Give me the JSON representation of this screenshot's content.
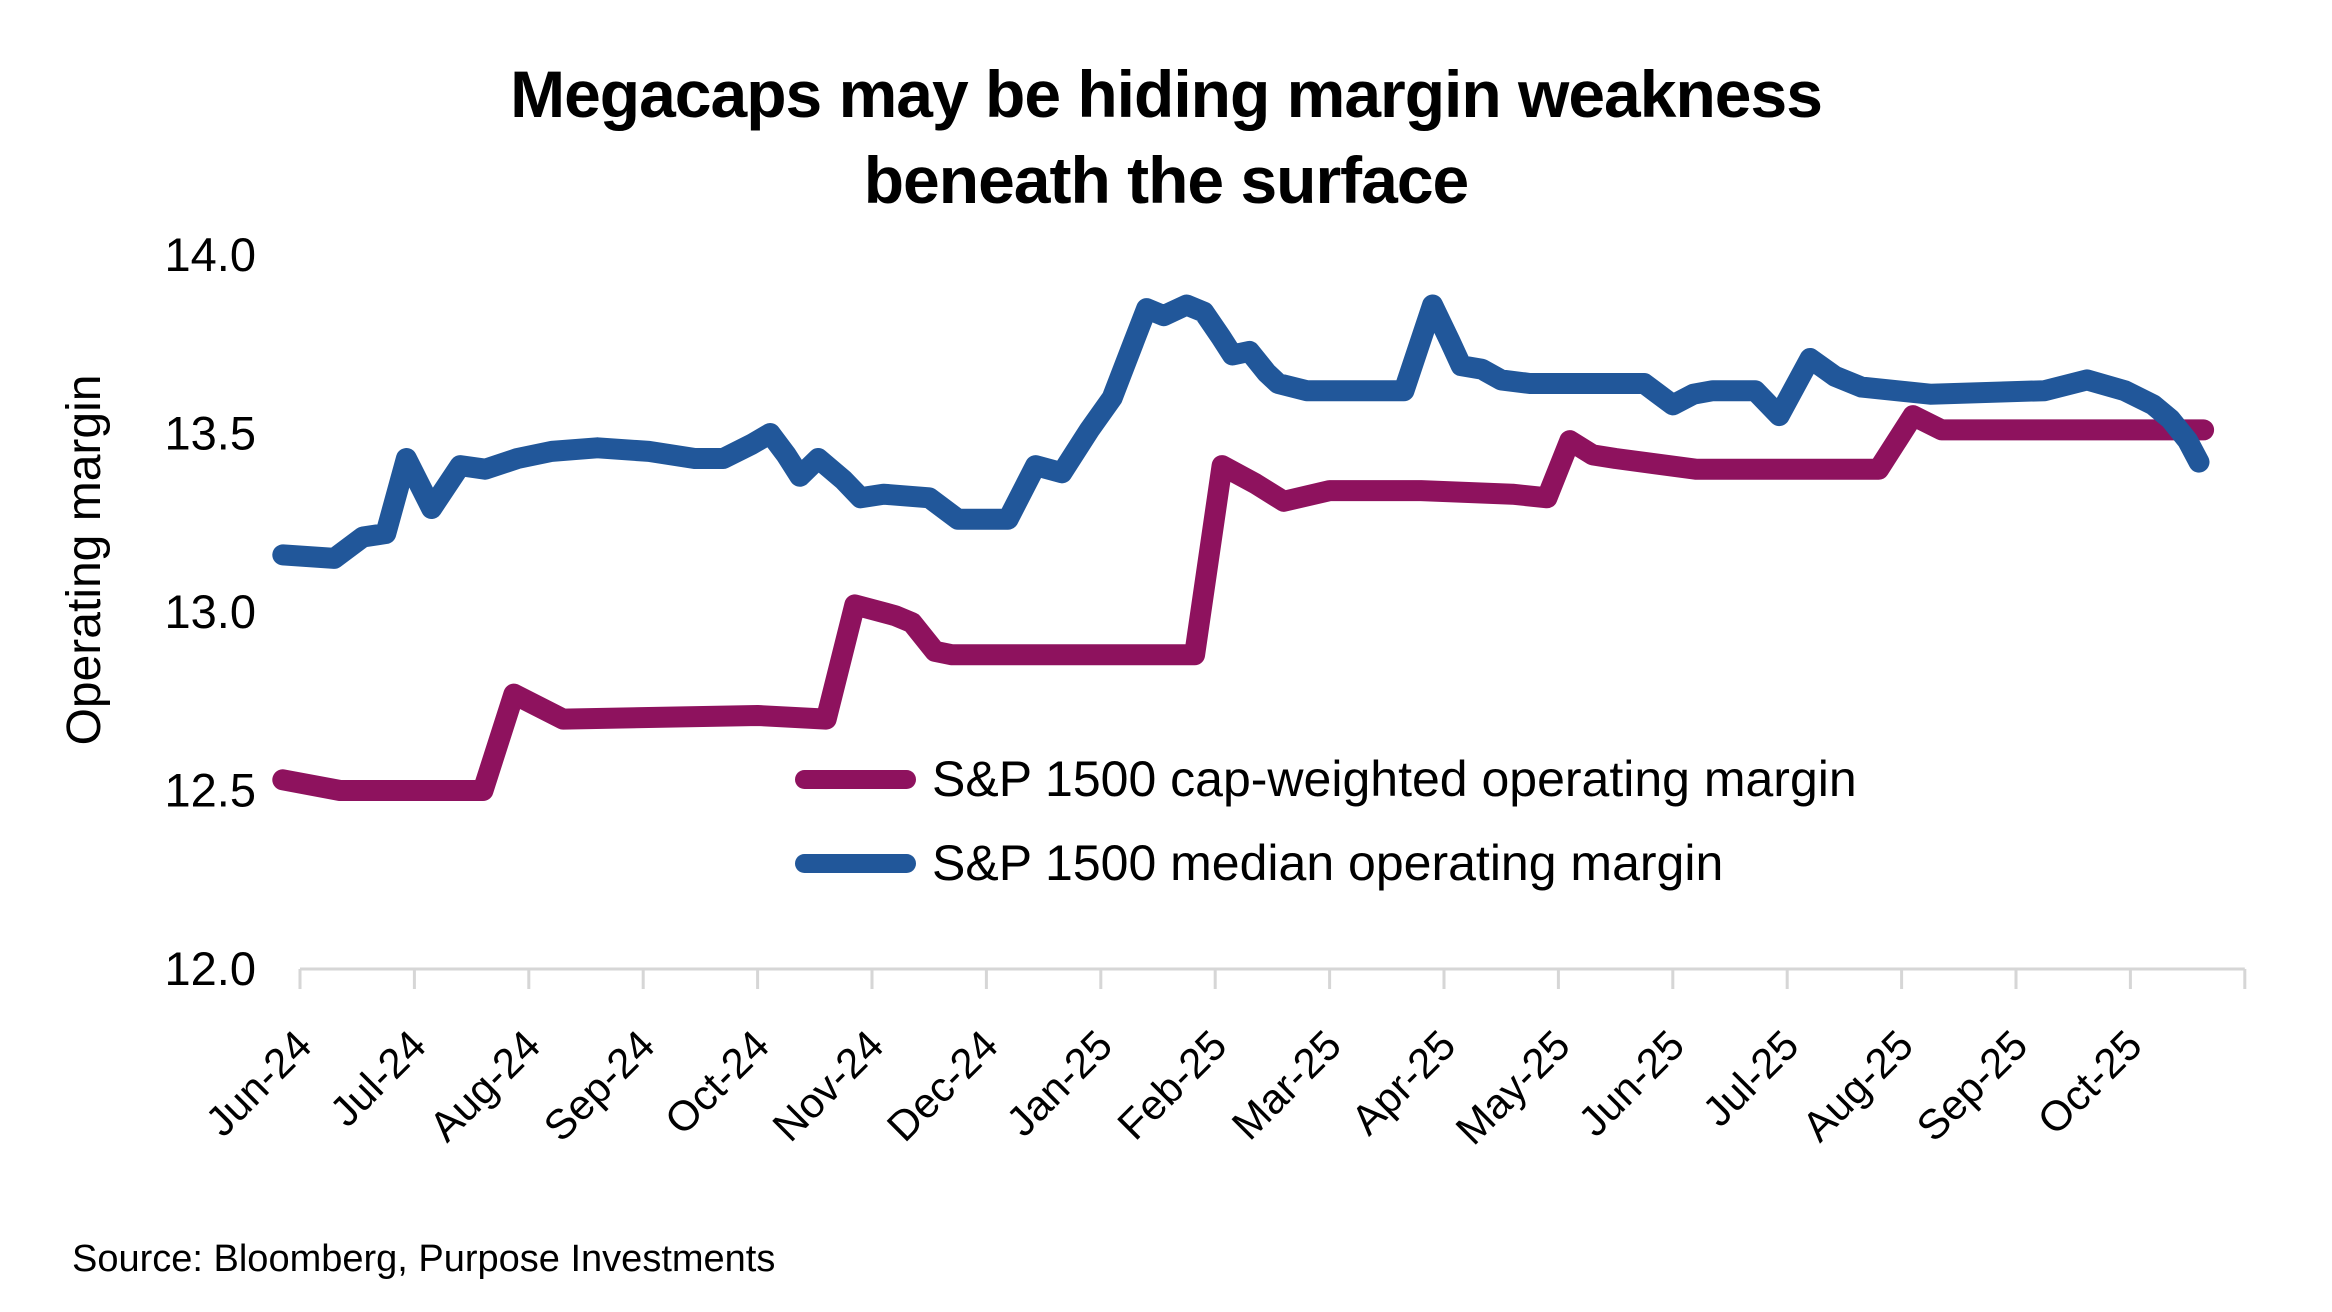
{
  "source": "Source: Bloomberg, Purpose Investments",
  "chart_data": {
    "type": "line",
    "title": "Megacaps may be hiding margin weakness beneath the surface",
    "xlabel": "",
    "ylabel": "Operating margin",
    "ylim": [
      12.0,
      14.0
    ],
    "y_ticks": [
      "14.0",
      "13.5",
      "13.0",
      "12.5",
      "12.0"
    ],
    "x_tick_labels": [
      "Jun-24",
      "Jul-24",
      "Aug-24",
      "Sep-24",
      "Oct-24",
      "Nov-24",
      "Dec-24",
      "Jan-25",
      "Feb-25",
      "Mar-25",
      "Apr-25",
      "May-25",
      "Jun-25",
      "Jul-25",
      "Aug-25",
      "Sep-25",
      "Oct-25"
    ],
    "x_units": "months after the Jun-24 tick (fractional = intra-month weekly data)",
    "grid": false,
    "legend_position": "inside lower-center",
    "axis_color": "#D6D6D6",
    "text_color": "#000000",
    "series": [
      {
        "name": "S&P 1500 cap-weighted operating margin",
        "color": "#8E125E",
        "points": [
          [
            -0.15,
            12.53
          ],
          [
            0.35,
            12.5
          ],
          [
            1.6,
            12.5
          ],
          [
            1.87,
            12.77
          ],
          [
            2.3,
            12.7
          ],
          [
            4.0,
            12.71
          ],
          [
            4.6,
            12.7
          ],
          [
            4.85,
            13.02
          ],
          [
            5.2,
            12.99
          ],
          [
            5.35,
            12.97
          ],
          [
            5.55,
            12.89
          ],
          [
            5.7,
            12.88
          ],
          [
            7.82,
            12.88
          ],
          [
            8.06,
            13.41
          ],
          [
            8.35,
            13.36
          ],
          [
            8.6,
            13.31
          ],
          [
            9.0,
            13.34
          ],
          [
            9.8,
            13.34
          ],
          [
            10.6,
            13.33
          ],
          [
            10.9,
            13.32
          ],
          [
            11.1,
            13.48
          ],
          [
            11.3,
            13.44
          ],
          [
            11.5,
            13.43
          ],
          [
            12.2,
            13.4
          ],
          [
            13.8,
            13.4
          ],
          [
            14.1,
            13.55
          ],
          [
            14.35,
            13.51
          ],
          [
            16.64,
            13.51
          ]
        ]
      },
      {
        "name": "S&P 1500 median operating margin",
        "color": "#21579A",
        "points": [
          [
            -0.15,
            13.16
          ],
          [
            0.3,
            13.15
          ],
          [
            0.55,
            13.21
          ],
          [
            0.75,
            13.22
          ],
          [
            0.93,
            13.43
          ],
          [
            1.15,
            13.29
          ],
          [
            1.4,
            13.41
          ],
          [
            1.62,
            13.4
          ],
          [
            1.9,
            13.43
          ],
          [
            2.2,
            13.45
          ],
          [
            2.6,
            13.46
          ],
          [
            3.05,
            13.45
          ],
          [
            3.45,
            13.43
          ],
          [
            3.7,
            13.43
          ],
          [
            3.95,
            13.47
          ],
          [
            4.11,
            13.5
          ],
          [
            4.25,
            13.44
          ],
          [
            4.37,
            13.38
          ],
          [
            4.53,
            13.43
          ],
          [
            4.75,
            13.37
          ],
          [
            4.9,
            13.32
          ],
          [
            5.1,
            13.33
          ],
          [
            5.5,
            13.32
          ],
          [
            5.75,
            13.26
          ],
          [
            6.19,
            13.26
          ],
          [
            6.43,
            13.41
          ],
          [
            6.66,
            13.39
          ],
          [
            6.9,
            13.51
          ],
          [
            7.1,
            13.6
          ],
          [
            7.28,
            13.75
          ],
          [
            7.4,
            13.85
          ],
          [
            7.55,
            13.83
          ],
          [
            7.75,
            13.86
          ],
          [
            7.9,
            13.84
          ],
          [
            8.05,
            13.77
          ],
          [
            8.15,
            13.72
          ],
          [
            8.3,
            13.73
          ],
          [
            8.45,
            13.67
          ],
          [
            8.55,
            13.64
          ],
          [
            8.8,
            13.62
          ],
          [
            9.65,
            13.62
          ],
          [
            9.9,
            13.86
          ],
          [
            10.05,
            13.76
          ],
          [
            10.15,
            13.69
          ],
          [
            10.33,
            13.68
          ],
          [
            10.5,
            13.65
          ],
          [
            10.75,
            13.64
          ],
          [
            11.75,
            13.64
          ],
          [
            12.0,
            13.58
          ],
          [
            12.18,
            13.61
          ],
          [
            12.35,
            13.62
          ],
          [
            12.72,
            13.62
          ],
          [
            12.93,
            13.55
          ],
          [
            13.2,
            13.71
          ],
          [
            13.42,
            13.66
          ],
          [
            13.65,
            13.63
          ],
          [
            14.25,
            13.61
          ],
          [
            15.25,
            13.62
          ],
          [
            15.62,
            13.65
          ],
          [
            15.95,
            13.62
          ],
          [
            16.2,
            13.58
          ],
          [
            16.35,
            13.54
          ],
          [
            16.5,
            13.48
          ],
          [
            16.6,
            13.42
          ]
        ]
      }
    ]
  }
}
